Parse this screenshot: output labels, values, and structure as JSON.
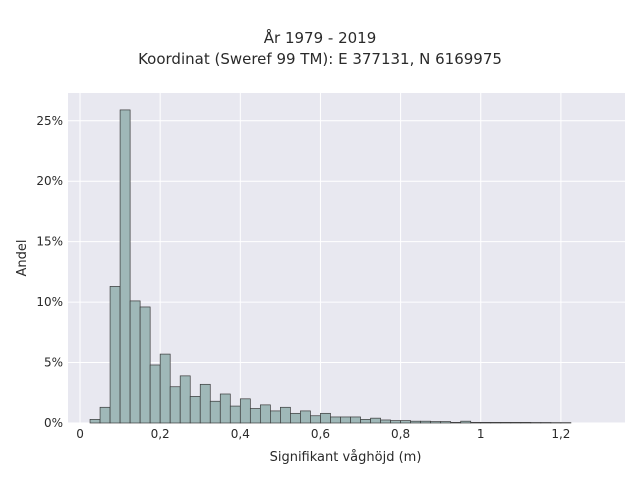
{
  "chart_data": {
    "type": "bar",
    "title": "År 1979 - 2019",
    "subtitle": "Koordinat (Sweref 99 TM): E 377131, N 6169975",
    "xlabel": "Signifikant våghöjd (m)",
    "ylabel": "Andel",
    "x_ticks": [
      "0",
      "0,2",
      "0,4",
      "0,6",
      "0,8",
      "1",
      "1,2"
    ],
    "x_tick_values": [
      0,
      0.2,
      0.4,
      0.6,
      0.8,
      1.0,
      1.2
    ],
    "y_ticks": [
      "0%",
      "5%",
      "10%",
      "15%",
      "20%",
      "25%"
    ],
    "y_tick_values": [
      0,
      5,
      10,
      15,
      20,
      25
    ],
    "xlim": [
      -0.03,
      1.36
    ],
    "ylim": [
      0,
      27.3
    ],
    "bin_width": 0.025,
    "bin_starts": [
      0.025,
      0.05,
      0.075,
      0.1,
      0.125,
      0.15,
      0.175,
      0.2,
      0.225,
      0.25,
      0.275,
      0.3,
      0.325,
      0.35,
      0.375,
      0.4,
      0.425,
      0.45,
      0.475,
      0.5,
      0.525,
      0.55,
      0.575,
      0.6,
      0.625,
      0.65,
      0.675,
      0.7,
      0.725,
      0.75,
      0.775,
      0.8,
      0.825,
      0.85,
      0.875,
      0.9,
      0.925,
      0.95,
      0.975,
      1.0,
      1.025,
      1.05,
      1.075,
      1.1,
      1.125,
      1.15,
      1.175,
      1.2
    ],
    "values": [
      0.3,
      1.3,
      11.3,
      25.9,
      10.1,
      9.6,
      4.8,
      5.7,
      3.0,
      3.9,
      2.2,
      3.2,
      1.8,
      2.4,
      1.4,
      2.0,
      1.2,
      1.5,
      1.0,
      1.3,
      0.8,
      1.0,
      0.6,
      0.8,
      0.5,
      0.5,
      0.5,
      0.3,
      0.4,
      0.25,
      0.2,
      0.2,
      0.15,
      0.15,
      0.12,
      0.12,
      0.05,
      0.15,
      0.05,
      0.05,
      0.05,
      0.05,
      0.05,
      0.05,
      0.04,
      0.04,
      0.03,
      0.03
    ],
    "grid": true,
    "colors": {
      "bar_fill": "#9fb8b8",
      "bar_edge": "#3a3a3a",
      "plot_background": "#e8e8f0",
      "grid": "#ffffff"
    }
  }
}
